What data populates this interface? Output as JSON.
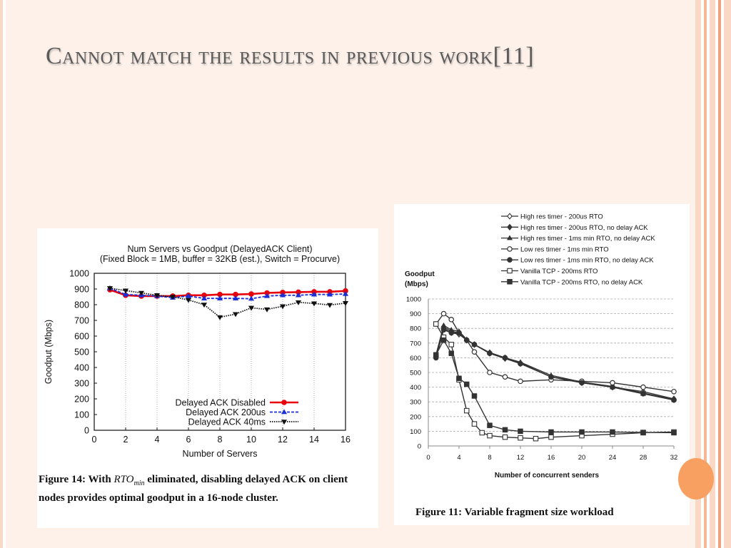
{
  "slide": {
    "title": "Cannot match the results in previous work[11]",
    "colors": {
      "background": "#fdf1ea",
      "title": "#5a5a5a",
      "stripe_light": "#f9d9c6",
      "stripe_dark": "#f0a07a",
      "accent_circle": "#f7a061"
    }
  },
  "figure14": {
    "caption_prefix": "Figure 14:  With ",
    "caption_rto": "RTO",
    "caption_rto_sub": "min",
    "caption_suffix": " eliminated, disabling delayed ACK on client nodes provides optimal goodput in a 16-node cluster."
  },
  "figure11": {
    "caption": "Figure 11:  Variable fragment size workload"
  },
  "chart_data": [
    {
      "type": "line",
      "title": "Num Servers vs Goodput (DelayedACK Client)",
      "subtitle": "(Fixed Block = 1MB, buffer = 32KB (est.), Switch = Procurve)",
      "xlabel": "Number of Servers",
      "ylabel": "Goodput (Mbps)",
      "xlim": [
        0,
        16
      ],
      "ylim": [
        0,
        1000
      ],
      "xticks": [
        0,
        2,
        4,
        6,
        8,
        10,
        12,
        14,
        16
      ],
      "yticks": [
        0,
        100,
        200,
        300,
        400,
        500,
        600,
        700,
        800,
        900,
        1000
      ],
      "grid": "vertical dotted",
      "legend_position": "bottom-right",
      "series": [
        {
          "name": "Delayed ACK Disabled",
          "color": "#e8000b",
          "style": "solid",
          "marker": "circle",
          "x": [
            1,
            2,
            3,
            4,
            5,
            6,
            7,
            8,
            9,
            10,
            11,
            12,
            13,
            14,
            15,
            16
          ],
          "y": [
            895,
            860,
            855,
            855,
            855,
            860,
            860,
            865,
            865,
            868,
            875,
            878,
            880,
            882,
            882,
            888
          ]
        },
        {
          "name": "Delayed ACK 200us",
          "color": "#1a2fd6",
          "style": "dashed",
          "marker": "triangle",
          "x": [
            1,
            2,
            3,
            4,
            5,
            6,
            7,
            8,
            9,
            10,
            11,
            12,
            13,
            14,
            15,
            16
          ],
          "y": [
            905,
            865,
            860,
            855,
            845,
            855,
            840,
            840,
            840,
            838,
            855,
            860,
            860,
            865,
            865,
            868
          ]
        },
        {
          "name": "Delayed ACK 40ms",
          "color": "#111111",
          "style": "dotted",
          "marker": "inverted-triangle",
          "x": [
            1,
            2,
            3,
            4,
            5,
            6,
            7,
            8,
            9,
            10,
            11,
            12,
            13,
            14,
            15,
            16
          ],
          "y": [
            905,
            890,
            875,
            860,
            850,
            830,
            800,
            720,
            740,
            780,
            770,
            790,
            815,
            808,
            798,
            810
          ]
        }
      ]
    },
    {
      "type": "line",
      "xlabel": "Number of concurrent senders",
      "ylabel": "Goodput\n(Mbps)",
      "xlim": [
        0,
        32
      ],
      "ylim": [
        0,
        1000
      ],
      "xticks": [
        0,
        4,
        8,
        12,
        16,
        20,
        24,
        28,
        32
      ],
      "yticks": [
        0,
        100,
        200,
        300,
        400,
        500,
        600,
        700,
        800,
        900,
        1000
      ],
      "grid": "horizontal dashed",
      "legend_position": "top",
      "series": [
        {
          "name": "High res timer - 200us RTO",
          "marker": "open-diamond",
          "x": [
            1,
            2,
            3,
            4,
            5,
            6,
            8,
            10,
            12,
            16,
            20,
            24,
            28,
            32
          ],
          "y": [
            615,
            800,
            770,
            760,
            720,
            690,
            630,
            595,
            560,
            470,
            430,
            400,
            370,
            320
          ]
        },
        {
          "name": "High res timer - 200us RTO, no delay ACK",
          "marker": "filled-diamond",
          "x": [
            1,
            2,
            3,
            4,
            5,
            6,
            8,
            10,
            12,
            16,
            20,
            24,
            28,
            32
          ],
          "y": [
            610,
            810,
            780,
            770,
            720,
            690,
            635,
            600,
            565,
            470,
            435,
            405,
            360,
            315
          ]
        },
        {
          "name": "High res timer - 1ms min RTO, no delay ACK",
          "marker": "filled-triangle",
          "x": [
            1,
            2,
            3,
            4,
            5,
            6,
            8,
            10,
            12,
            16,
            20,
            24,
            28,
            32
          ],
          "y": [
            620,
            820,
            790,
            780,
            725,
            690,
            635,
            600,
            570,
            480,
            435,
            400,
            355,
            318
          ]
        },
        {
          "name": "Low res timer - 1ms min RTO",
          "marker": "open-circle",
          "x": [
            1,
            2,
            3,
            4,
            5,
            6,
            8,
            10,
            12,
            16,
            20,
            24,
            28,
            32
          ],
          "y": [
            830,
            900,
            860,
            770,
            720,
            640,
            500,
            470,
            440,
            450,
            440,
            430,
            400,
            370
          ]
        },
        {
          "name": "Low res timer - 1ms min RTO, no delay ACK",
          "marker": "filled-circle",
          "x": [
            1,
            2,
            3,
            4,
            5,
            6,
            8,
            10,
            12,
            16,
            20,
            24,
            28,
            32
          ],
          "y": [
            600,
            790,
            770,
            770,
            720,
            690,
            630,
            600,
            560,
            470,
            430,
            400,
            355,
            312
          ]
        },
        {
          "name": "Vanilla TCP - 200ms RTO",
          "marker": "open-square",
          "x": [
            1,
            2,
            3,
            4,
            5,
            6,
            7,
            8,
            10,
            12,
            14,
            16,
            20,
            24,
            28,
            32
          ],
          "y": [
            830,
            740,
            690,
            450,
            240,
            150,
            90,
            70,
            60,
            55,
            50,
            60,
            70,
            80,
            90,
            95
          ]
        },
        {
          "name": "Vanilla TCP - 200ms RTO, no delay ACK",
          "marker": "filled-square",
          "x": [
            1,
            2,
            3,
            4,
            5,
            6,
            8,
            10,
            12,
            16,
            20,
            24,
            28,
            32
          ],
          "y": [
            620,
            720,
            630,
            460,
            420,
            340,
            140,
            110,
            100,
            95,
            95,
            95,
            92,
            90
          ]
        }
      ]
    }
  ]
}
